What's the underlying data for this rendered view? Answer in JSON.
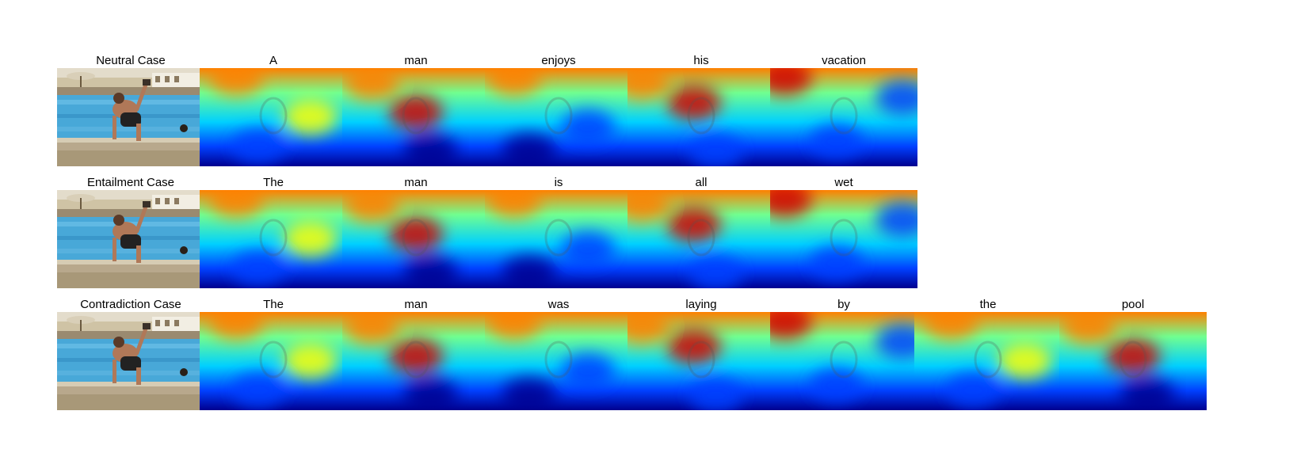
{
  "rows": [
    {
      "case_label": "Neutral Case",
      "words": [
        "A",
        "man",
        "enjoys",
        "his",
        "vacation"
      ]
    },
    {
      "case_label": "Entailment Case",
      "words": [
        "The",
        "man",
        "is",
        "all",
        "wet"
      ]
    },
    {
      "case_label": "Contradiction Case",
      "words": [
        "The",
        "man",
        "was",
        "laying",
        "by",
        "the",
        "pool"
      ]
    }
  ],
  "heatmap_colormap": [
    "#00008f",
    "#0040ff",
    "#00d0ff",
    "#70ff90",
    "#ffff00",
    "#ff8000",
    "#d00000",
    "#800000"
  ]
}
